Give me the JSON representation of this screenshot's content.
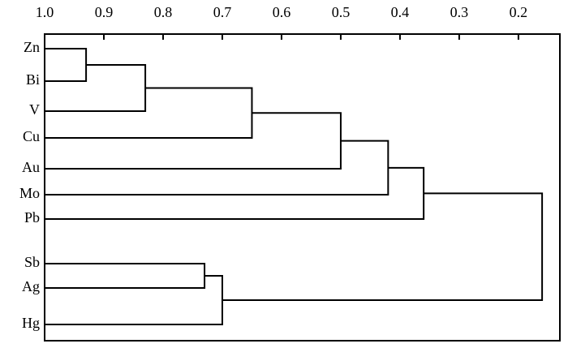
{
  "chart_data": {
    "type": "dendrogram",
    "xlim": [
      1.0,
      0.13
    ],
    "xticks": [
      {
        "value": 1.0,
        "label": "1.0"
      },
      0.9,
      0.8,
      0.7,
      0.6,
      0.5,
      0.4,
      0.3,
      0.2
    ],
    "color": "#000000",
    "tree": {
      "height": 0.16,
      "children": [
        {
          "height": 0.36,
          "children": [
            {
              "height": 0.42,
              "children": [
                {
                  "height": 0.5,
                  "children": [
                    {
                      "height": 0.65,
                      "children": [
                        {
                          "height": 0.83,
                          "children": [
                            {
                              "height": 0.93,
                              "children": [
                                "Zn",
                                "Bi"
                              ]
                            },
                            "V"
                          ]
                        },
                        "Cu"
                      ]
                    },
                    "Au"
                  ]
                },
                "Mo"
              ]
            },
            "Pb"
          ]
        },
        {
          "height": 0.7,
          "children": [
            {
              "height": 0.73,
              "children": [
                "Sb",
                "Ag"
              ]
            },
            "Hg"
          ]
        }
      ]
    }
  }
}
